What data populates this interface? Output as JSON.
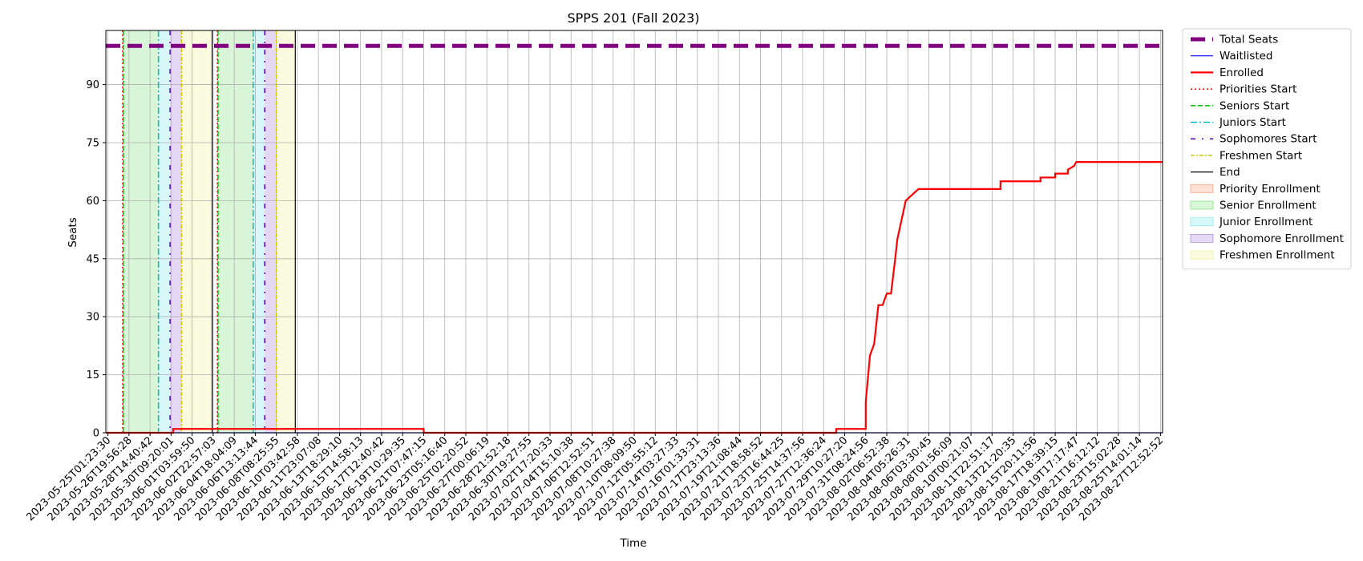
{
  "chart_data": {
    "type": "line",
    "title": "SPPS 201 (Fall 2023)",
    "xlabel": "Time",
    "ylabel": "Seats",
    "ylim": [
      0,
      104
    ],
    "yticks": [
      0,
      15,
      30,
      45,
      60,
      75,
      90
    ],
    "grid": true,
    "legend_placement": "outside-top-right",
    "xtick_labels": [
      "2023-05-25T01:23:30",
      "2023-05-26T19:56:28",
      "2023-05-28T14:40:42",
      "2023-05-30T09:20:01",
      "2023-06-01T03:59:50",
      "2023-06-02T22:57:03",
      "2023-06-04T18:04:09",
      "2023-06-06T13:13:44",
      "2023-06-08T08:25:55",
      "2023-06-10T03:42:58",
      "2023-06-11T23:07:08",
      "2023-06-13T18:29:10",
      "2023-06-15T14:58:13",
      "2023-06-17T12:40:42",
      "2023-06-19T10:29:35",
      "2023-06-21T07:47:15",
      "2023-06-23T05:16:40",
      "2023-06-25T02:20:52",
      "2023-06-27T00:06:19",
      "2023-06-28T21:52:18",
      "2023-06-30T19:27:55",
      "2023-07-02T17:20:33",
      "2023-07-04T15:10:38",
      "2023-07-06T12:52:51",
      "2023-07-08T10:27:38",
      "2023-07-10T08:09:50",
      "2023-07-12T05:55:12",
      "2023-07-14T03:27:33",
      "2023-07-16T01:33:31",
      "2023-07-17T23:13:36",
      "2023-07-19T21:08:44",
      "2023-07-21T18:58:52",
      "2023-07-23T16:44:25",
      "2023-07-25T14:37:56",
      "2023-07-27T12:36:24",
      "2023-07-29T10:27:20",
      "2023-07-31T08:24:56",
      "2023-08-02T06:52:38",
      "2023-08-04T05:26:31",
      "2023-08-06T03:30:45",
      "2023-08-08T01:56:09",
      "2023-08-10T00:21:07",
      "2023-08-11T22:51:17",
      "2023-08-13T21:20:35",
      "2023-08-15T20:11:56",
      "2023-08-17T18:39:15",
      "2023-08-19T17:17:47",
      "2023-08-21T16:12:12",
      "2023-08-23T15:02:28",
      "2023-08-25T14:01:14",
      "2023-08-27T12:52:52"
    ],
    "series": [
      {
        "name": "Total Seats",
        "color": "#800080",
        "style": "dashed-thick",
        "x": [
          -0.1,
          50.1
        ],
        "y": [
          100,
          100
        ]
      },
      {
        "name": "Waitlisted",
        "color": "#0000ff",
        "style": "solid",
        "x": [
          -0.1,
          50.1
        ],
        "y": [
          0,
          0
        ]
      },
      {
        "name": "Enrolled",
        "color": "#ff0000",
        "style": "solid-thick",
        "x": [
          -0.1,
          3.1,
          3.1,
          15.0,
          15.0,
          34.6,
          34.6,
          36.0,
          36.0,
          36.2,
          36.4,
          36.6,
          36.8,
          37.0,
          37.2,
          37.4,
          37.5,
          37.7,
          37.9,
          38.1,
          38.3,
          38.5,
          38.7,
          38.9,
          39.2,
          39.5,
          40.0,
          41.0,
          42.0,
          42.4,
          42.4,
          44.3,
          44.3,
          45.0,
          45.0,
          45.6,
          45.6,
          45.9,
          46.0,
          50.1
        ],
        "y": [
          0,
          0,
          1,
          1,
          0,
          0,
          1,
          1,
          8,
          20,
          23,
          33,
          33,
          36,
          36,
          45,
          50,
          55,
          60,
          61,
          62,
          63,
          63,
          63,
          63,
          63,
          63,
          63,
          63,
          63,
          65,
          65,
          66,
          66,
          67,
          67,
          68,
          69,
          70,
          70
        ]
      },
      {
        "name": "Priorities Start",
        "color": "#ff0000",
        "style": "dotted",
        "x_positions": [
          0.7,
          5.2
        ]
      },
      {
        "name": "Seniors Start",
        "color": "#00c000",
        "style": "dashed",
        "x_positions": [
          0.73,
          5.23
        ]
      },
      {
        "name": "Juniors Start",
        "color": "#00bfbf",
        "style": "dashdot",
        "x_positions": [
          2.4,
          6.9
        ]
      },
      {
        "name": "Sophomores Start",
        "color": "#5000c8",
        "style": "dashdot-sparse",
        "x_positions": [
          2.95,
          7.45
        ]
      },
      {
        "name": "Freshmen Start",
        "color": "#d4c800",
        "style": "dashdot-dense",
        "x_positions": [
          3.5,
          8.0
        ]
      },
      {
        "name": "End",
        "color": "#000000",
        "style": "solid",
        "x_positions": [
          4.95,
          8.9
        ]
      }
    ],
    "bands": [
      {
        "name": "Priority Enrollment",
        "color": "#f4a582",
        "ranges": [
          [
            0.7,
            0.73
          ],
          [
            5.2,
            5.23
          ]
        ]
      },
      {
        "name": "Senior Enrollment",
        "color": "#8fe38f",
        "ranges": [
          [
            0.73,
            2.4
          ],
          [
            5.23,
            6.9
          ]
        ]
      },
      {
        "name": "Junior Enrollment",
        "color": "#8fe8ec",
        "ranges": [
          [
            2.4,
            2.95
          ],
          [
            6.9,
            7.45
          ]
        ]
      },
      {
        "name": "Sophomore Enrollment",
        "color": "#b58fe3",
        "ranges": [
          [
            2.95,
            3.5
          ],
          [
            7.45,
            8.0
          ]
        ]
      },
      {
        "name": "Freshmen Enrollment",
        "color": "#f0f0a0",
        "ranges": [
          [
            3.5,
            4.95
          ],
          [
            8.0,
            8.9
          ]
        ]
      }
    ],
    "legend": [
      {
        "label": "Total Seats",
        "kind": "line",
        "color": "#800080",
        "style": "dashed-thick"
      },
      {
        "label": "Waitlisted",
        "kind": "line",
        "color": "#0000ff",
        "style": "solid"
      },
      {
        "label": "Enrolled",
        "kind": "line",
        "color": "#ff0000",
        "style": "solid-thick"
      },
      {
        "label": "Priorities Start",
        "kind": "line",
        "color": "#ff0000",
        "style": "dotted"
      },
      {
        "label": "Seniors Start",
        "kind": "line",
        "color": "#00c000",
        "style": "dashed"
      },
      {
        "label": "Juniors Start",
        "kind": "line",
        "color": "#00bfbf",
        "style": "dashdot"
      },
      {
        "label": "Sophomores Start",
        "kind": "line",
        "color": "#5000c8",
        "style": "dashdot-sparse"
      },
      {
        "label": "Freshmen Start",
        "kind": "line",
        "color": "#d4c800",
        "style": "dashdot-dense"
      },
      {
        "label": "End",
        "kind": "line",
        "color": "#000000",
        "style": "solid"
      },
      {
        "label": "Priority Enrollment",
        "kind": "patch",
        "color": "#f4a582"
      },
      {
        "label": "Senior Enrollment",
        "kind": "patch",
        "color": "#8fe38f"
      },
      {
        "label": "Junior Enrollment",
        "kind": "patch",
        "color": "#8fe8ec"
      },
      {
        "label": "Sophomore Enrollment",
        "kind": "patch",
        "color": "#b58fe3"
      },
      {
        "label": "Freshmen Enrollment",
        "kind": "patch",
        "color": "#f0f0a0"
      }
    ]
  }
}
